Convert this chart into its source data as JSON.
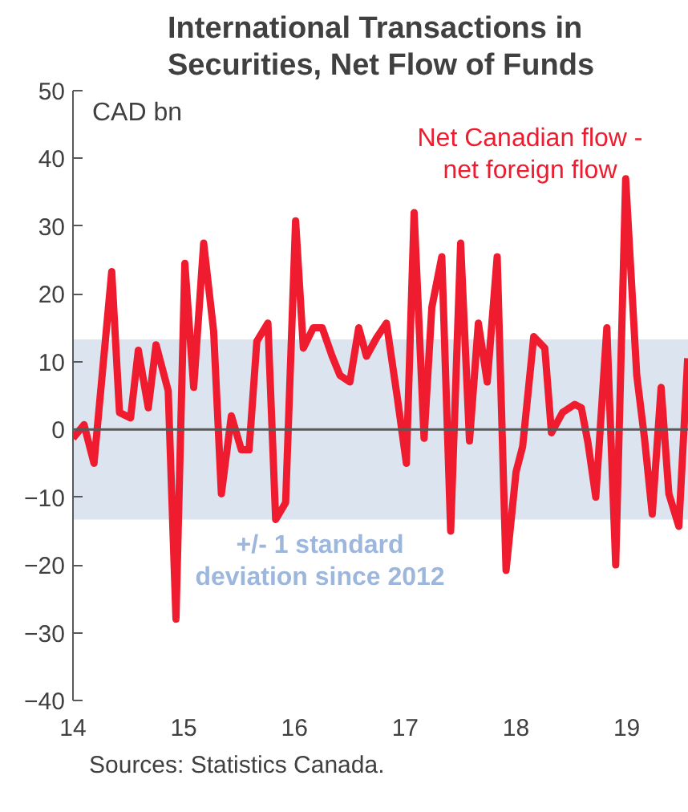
{
  "chart_data": {
    "type": "line",
    "title": "International Transactions in\nSecurities, Net Flow of Funds",
    "x": [
      14.0,
      14.1,
      14.19,
      14.35,
      14.42,
      14.52,
      14.59,
      14.68,
      14.75,
      14.86,
      14.93,
      15.01,
      15.09,
      15.18,
      15.27,
      15.34,
      15.43,
      15.52,
      15.59,
      15.66,
      15.76,
      15.83,
      15.92,
      16.01,
      16.08,
      16.17,
      16.25,
      16.34,
      16.41,
      16.5,
      16.58,
      16.65,
      16.74,
      16.83,
      16.93,
      17.01,
      17.08,
      17.17,
      17.24,
      17.33,
      17.41,
      17.5,
      17.58,
      17.66,
      17.74,
      17.83,
      17.91,
      18.0,
      18.06,
      18.16,
      18.26,
      18.32,
      18.42,
      18.53,
      18.59,
      18.65,
      18.72,
      18.82,
      18.9,
      18.99,
      19.09,
      19.16,
      19.23,
      19.31,
      19.38,
      19.47,
      19.55
    ],
    "series": [
      {
        "name": "Net Canadian flow -\nnet foreign flow",
        "color": "#ee1c2e",
        "values": [
          -1.3,
          0.7,
          -5,
          23.3,
          2.5,
          1.7,
          11.7,
          3.2,
          12.5,
          5.7,
          -28,
          24.5,
          6.2,
          27.5,
          14.5,
          -9.5,
          2,
          -3,
          -3,
          13,
          15.7,
          -13.3,
          -10.8,
          30.8,
          12,
          15,
          15,
          10.8,
          8,
          7,
          15,
          10.8,
          13.5,
          15.7,
          4.5,
          -5,
          32,
          -1.3,
          18,
          25.5,
          -15,
          27.5,
          -1.7,
          15.7,
          7,
          25.5,
          -20.8,
          -6.3,
          -2.5,
          13.7,
          12,
          -0.5,
          2.5,
          3.7,
          3.2,
          -2,
          -10,
          15,
          -20,
          37,
          8,
          -1.3,
          -12.5,
          6.2,
          -9.5,
          -14.3,
          10.5
        ]
      }
    ],
    "xlim": [
      14,
      19.56
    ],
    "xticks": [
      {
        "value": 14,
        "label": "14"
      },
      {
        "value": 15,
        "label": "15"
      },
      {
        "value": 16,
        "label": "16"
      },
      {
        "value": 17,
        "label": "17"
      },
      {
        "value": 18,
        "label": "18"
      },
      {
        "value": 19,
        "label": "19"
      }
    ],
    "ylim": [
      -40,
      50
    ],
    "yticks": [
      -40,
      -30,
      -20,
      -10,
      0,
      10,
      20,
      30,
      40,
      50
    ],
    "bands": [
      {
        "axis": "y",
        "from": -13.3,
        "to": 13.3,
        "label": "+/- 1 standard\ndeviation since 2012",
        "color": "#dce4f0"
      }
    ],
    "ref_lines": [
      {
        "axis": "y",
        "value": 0,
        "color": "#595959"
      }
    ],
    "annotations": [
      "CAD bn",
      "Sources: Statistics Canada."
    ],
    "grid": false,
    "marker": "none",
    "line_style": "solid"
  }
}
